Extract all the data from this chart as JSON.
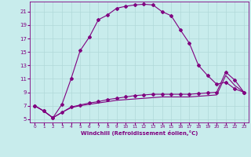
{
  "xlabel": "Windchill (Refroidissement éolien,°C)",
  "bg_color": "#c8ecec",
  "line_color": "#800080",
  "grid_color": "#b0d8d8",
  "xlim": [
    -0.5,
    23.5
  ],
  "ylim": [
    4.5,
    22.5
  ],
  "xticks": [
    0,
    1,
    2,
    3,
    4,
    5,
    6,
    7,
    8,
    9,
    10,
    11,
    12,
    13,
    14,
    15,
    16,
    17,
    18,
    19,
    20,
    21,
    22,
    23
  ],
  "yticks": [
    5,
    7,
    9,
    11,
    13,
    15,
    17,
    19,
    21
  ],
  "curve1_x": [
    0,
    1,
    2,
    3,
    4,
    5,
    6,
    7,
    8,
    9,
    10,
    11,
    12,
    13,
    14,
    15,
    16,
    17,
    18,
    19,
    20,
    21,
    22,
    23
  ],
  "curve1_y": [
    7.0,
    6.2,
    5.2,
    7.2,
    11.0,
    15.2,
    17.2,
    19.8,
    20.5,
    21.5,
    21.8,
    22.0,
    22.1,
    22.0,
    21.0,
    20.4,
    18.3,
    16.3,
    13.0,
    11.5,
    10.2,
    10.5,
    9.5,
    9.0
  ],
  "curve2_x": [
    0,
    1,
    2,
    3,
    4,
    5,
    6,
    7,
    8,
    9,
    10,
    11,
    12,
    13,
    14,
    15,
    16,
    17,
    18,
    19,
    20,
    21,
    22,
    23
  ],
  "curve2_y": [
    7.0,
    6.2,
    5.2,
    6.0,
    6.8,
    7.1,
    7.4,
    7.6,
    7.9,
    8.1,
    8.3,
    8.5,
    8.6,
    8.7,
    8.7,
    8.7,
    8.7,
    8.7,
    8.8,
    8.9,
    9.0,
    12.0,
    10.8,
    9.0
  ],
  "curve3_x": [
    0,
    1,
    2,
    3,
    4,
    5,
    6,
    7,
    8,
    9,
    10,
    11,
    12,
    13,
    14,
    15,
    16,
    17,
    18,
    19,
    20,
    21,
    22,
    23
  ],
  "curve3_y": [
    7.0,
    6.2,
    5.2,
    6.0,
    6.7,
    7.0,
    7.2,
    7.4,
    7.6,
    7.8,
    7.9,
    8.0,
    8.1,
    8.2,
    8.3,
    8.3,
    8.3,
    8.3,
    8.4,
    8.5,
    8.6,
    11.5,
    10.0,
    9.0
  ]
}
